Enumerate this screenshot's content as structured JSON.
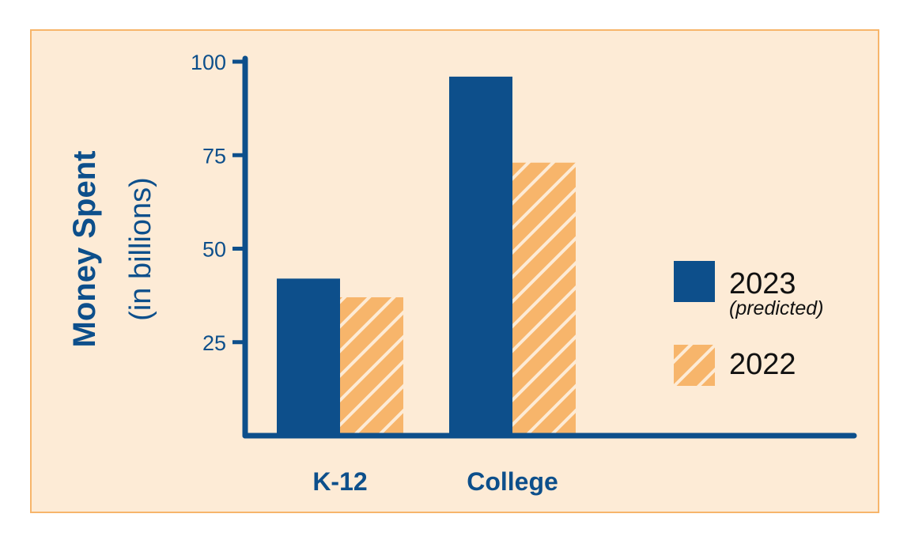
{
  "colors": {
    "series_2023": "#0d4f8b",
    "series_2022": "#f7b56b",
    "background": "#fdebd6",
    "border": "#f7b56b",
    "axis": "#0d4f8b"
  },
  "ylabel": {
    "bold": "Money Spent",
    "light": "(in billions)"
  },
  "legend": [
    {
      "label": "2023",
      "sublabel": "(predicted)",
      "pattern": "solid"
    },
    {
      "label": "2022",
      "sublabel": "",
      "pattern": "hatched"
    }
  ],
  "chart_data": {
    "type": "bar",
    "categories": [
      "K-12",
      "College"
    ],
    "series": [
      {
        "name": "2023 (predicted)",
        "values": [
          42,
          96
        ]
      },
      {
        "name": "2022",
        "values": [
          37,
          73
        ]
      }
    ],
    "title": "",
    "xlabel": "",
    "ylabel": "Money Spent (in billions)",
    "ylim": [
      0,
      100
    ],
    "yticks": [
      25,
      50,
      75,
      100
    ],
    "grid": false,
    "legend_position": "right"
  }
}
